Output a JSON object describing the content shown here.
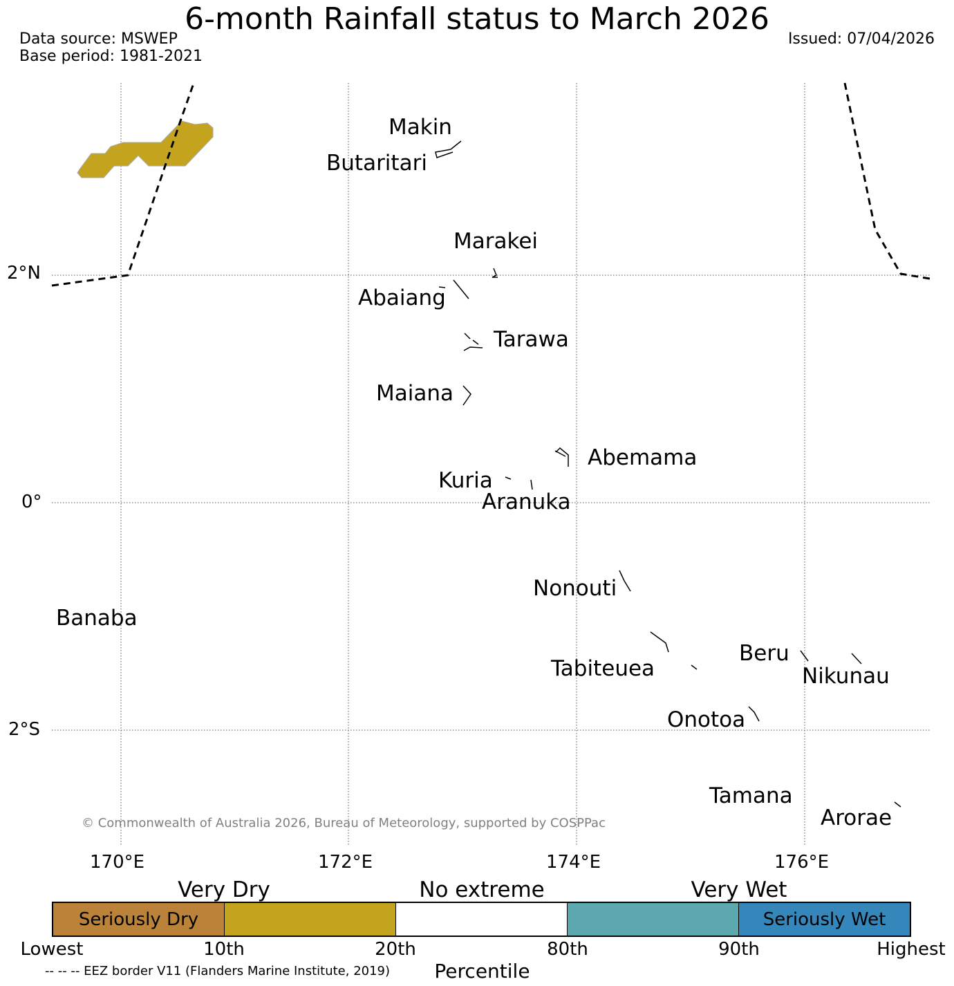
{
  "header": {
    "title": "6-month Rainfall status to March 2026",
    "data_source": "Data source: MSWEP",
    "base_period": "Base period: 1981-2021",
    "issued": "Issued: 07/04/2026"
  },
  "map": {
    "lat_ticks": [
      "2°N",
      "0°",
      "2°S"
    ],
    "lon_ticks": [
      "170°E",
      "172°E",
      "174°E",
      "176°E"
    ],
    "islands": {
      "makin": "Makin",
      "butaritari": "Butaritari",
      "marakei": "Marakei",
      "abaiang": "Abaiang",
      "tarawa": "Tarawa",
      "maiana": "Maiana",
      "abemama": "Abemama",
      "kuria": "Kuria",
      "aranuka": "Aranuka",
      "nonouti": "Nonouti",
      "banaba": "Banaba",
      "beru": "Beru",
      "tabiteuea": "Tabiteuea",
      "nikunau": "Nikunau",
      "onotoa": "Onotoa",
      "tamana": "Tamana",
      "arorae": "Arorae"
    },
    "shaded_region_category": "Very Dry",
    "shaded_region_color": "#c4a41f",
    "copyright": "© Commonwealth of Australia 2026, Bureau of Meteorology, supported by COSPPac"
  },
  "legend": {
    "categories": {
      "very_dry": "Very Dry",
      "no_extreme": "No extreme",
      "very_wet": "Very Wet"
    },
    "segments": [
      {
        "label": "Seriously Dry",
        "color": "#bb8239"
      },
      {
        "label": "",
        "color": "#c4a41f"
      },
      {
        "label": "",
        "color": "#ffffff"
      },
      {
        "label": "",
        "color": "#5ca8ae"
      },
      {
        "label": "Seriously Wet",
        "color": "#3586bb"
      }
    ],
    "percentiles": [
      "Lowest",
      "10th",
      "20th",
      "80th",
      "90th",
      "Highest"
    ],
    "axis_title": "Percentile",
    "eez_note": "-- -- -- EEZ border V11 (Flanders Marine Institute, 2019)"
  }
}
